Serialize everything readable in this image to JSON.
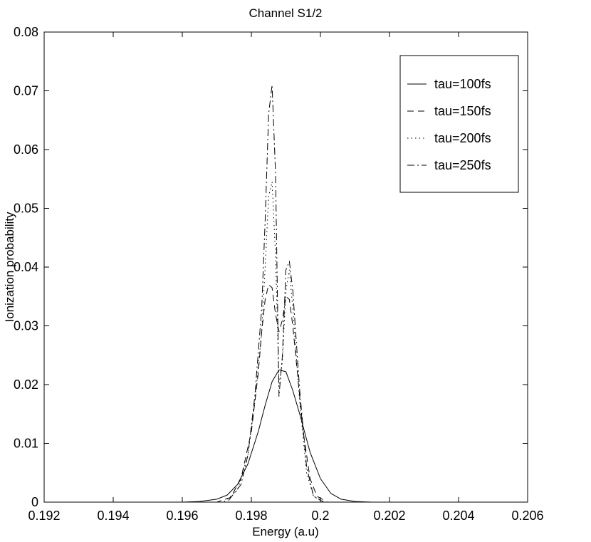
{
  "chart_data": {
    "type": "line",
    "title": "Channel S1/2",
    "xlabel": "Energy (a.u)",
    "ylabel": "Ionization probability",
    "xlim": [
      0.192,
      0.206
    ],
    "ylim": [
      0,
      0.08
    ],
    "x_ticks": [
      "0.192",
      "0.194",
      "0.196",
      "0.198",
      "0.2",
      "0.202",
      "0.204",
      "0.206"
    ],
    "y_ticks": [
      "0",
      "0.01",
      "0.02",
      "0.03",
      "0.04",
      "0.05",
      "0.06",
      "0.07",
      "0.08"
    ],
    "grid": false,
    "legend_position": "top-right",
    "series": [
      {
        "name": "tau=100fs",
        "style": "solid",
        "x": [
          0.196,
          0.1965,
          0.197,
          0.1973,
          0.1976,
          0.1979,
          0.1982,
          0.1984,
          0.1986,
          0.1988,
          0.199,
          0.1992,
          0.1994,
          0.1997,
          0.2,
          0.2003,
          0.2006,
          0.201,
          0.2015
        ],
        "y": [
          0.0,
          0.0001,
          0.0005,
          0.0012,
          0.003,
          0.0065,
          0.012,
          0.0165,
          0.0205,
          0.0225,
          0.0222,
          0.019,
          0.015,
          0.0085,
          0.004,
          0.0015,
          0.0005,
          0.0001,
          0.0
        ]
      },
      {
        "name": "tau=150fs",
        "style": "dashed",
        "x": [
          0.197,
          0.1974,
          0.1977,
          0.198,
          0.1982,
          0.1983,
          0.1984,
          0.1985,
          0.1986,
          0.1987,
          0.1988,
          0.1989,
          0.199,
          0.1991,
          0.1992,
          0.1993,
          0.1995,
          0.1997,
          0.1999,
          0.2002
        ],
        "y": [
          0.0,
          0.0008,
          0.004,
          0.012,
          0.022,
          0.029,
          0.0345,
          0.037,
          0.0365,
          0.032,
          0.029,
          0.031,
          0.035,
          0.0345,
          0.03,
          0.024,
          0.012,
          0.004,
          0.001,
          0.0
        ]
      },
      {
        "name": "tau=200fs",
        "style": "dotted",
        "x": [
          0.1972,
          0.1976,
          0.1979,
          0.1981,
          0.1983,
          0.1984,
          0.1985,
          0.1986,
          0.1987,
          0.1988,
          0.1989,
          0.199,
          0.1991,
          0.1992,
          0.1994,
          0.1996,
          0.1998,
          0.2001
        ],
        "y": [
          0.0,
          0.002,
          0.008,
          0.017,
          0.029,
          0.04,
          0.052,
          0.0545,
          0.042,
          0.02,
          0.024,
          0.036,
          0.0395,
          0.033,
          0.017,
          0.005,
          0.001,
          0.0
        ]
      },
      {
        "name": "tau=250fs",
        "style": "dashdot",
        "x": [
          0.1973,
          0.1977,
          0.1979,
          0.1981,
          0.1983,
          0.1984,
          0.1985,
          0.1986,
          0.1987,
          0.1988,
          0.1989,
          0.199,
          0.1991,
          0.1992,
          0.1994,
          0.1996,
          0.1998,
          0.2001
        ],
        "y": [
          0.0,
          0.003,
          0.008,
          0.018,
          0.033,
          0.048,
          0.066,
          0.071,
          0.056,
          0.018,
          0.025,
          0.0395,
          0.041,
          0.036,
          0.019,
          0.006,
          0.001,
          0.0
        ]
      }
    ]
  }
}
